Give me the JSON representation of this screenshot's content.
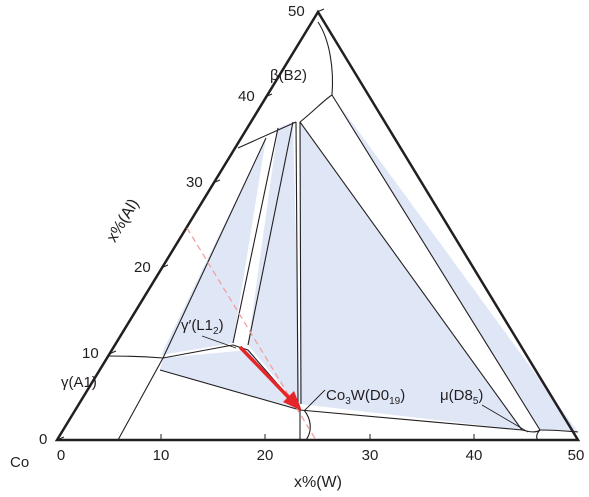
{
  "diagram": {
    "corner_label": "Co",
    "x_axis": {
      "title": "x%(W)",
      "ticks": [
        "0",
        "10",
        "20",
        "30",
        "40",
        "50"
      ]
    },
    "y_axis": {
      "title": "x%(Al)",
      "ticks": [
        "0",
        "10",
        "20",
        "30",
        "40",
        "50"
      ]
    },
    "phases": {
      "beta": "β(B2)",
      "gamma_a1": "γ(A1)",
      "gamma_prime_main": "γ′(L1",
      "gamma_prime_sub": "2",
      "gamma_prime_close": ")",
      "co3w_a": "Co",
      "co3w_sub1": "3",
      "co3w_b": "W(D0",
      "co3w_sub2": "19",
      "co3w_close": ")",
      "mu_main": "μ(D8",
      "mu_sub": "5",
      "mu_close": ")"
    },
    "colors": {
      "fill": "#dfe7f6",
      "line": "#231f20",
      "arrow": "#e52528",
      "dashed": "#f0a0a0"
    }
  }
}
